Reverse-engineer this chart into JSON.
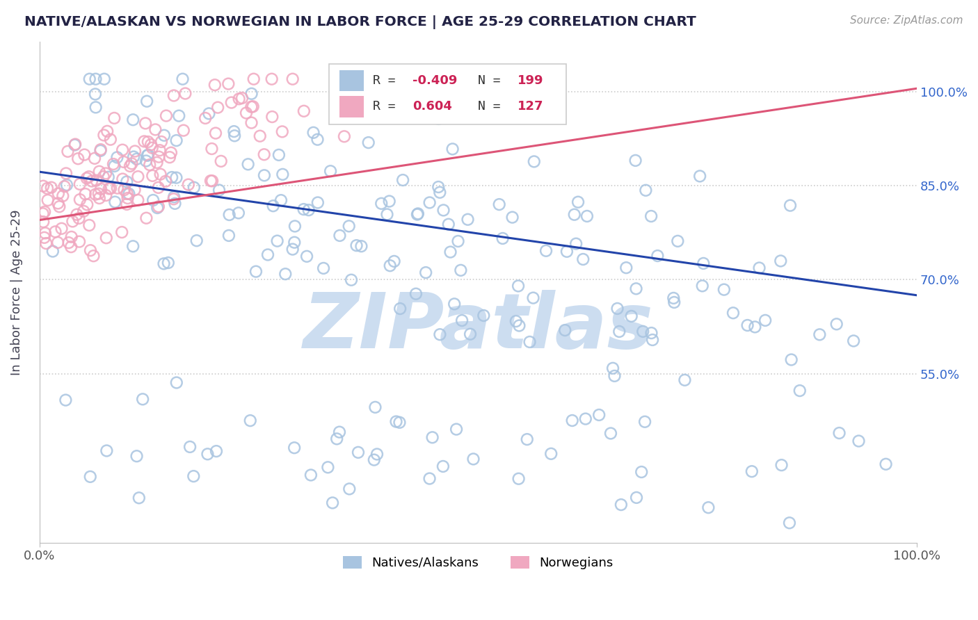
{
  "title": "NATIVE/ALASKAN VS NORWEGIAN IN LABOR FORCE | AGE 25-29 CORRELATION CHART",
  "source_text": "Source: ZipAtlas.com",
  "ylabel": "In Labor Force | Age 25-29",
  "xlim": [
    0.0,
    1.0
  ],
  "ylim": [
    0.28,
    1.08
  ],
  "ytick_labels": [
    "55.0%",
    "70.0%",
    "85.0%",
    "100.0%"
  ],
  "ytick_values": [
    0.55,
    0.7,
    0.85,
    1.0
  ],
  "xtick_labels": [
    "0.0%",
    "100.0%"
  ],
  "xtick_values": [
    0.0,
    1.0
  ],
  "scatter_blue_N": 199,
  "scatter_pink_N": 127,
  "blue_color": "#a8c4e0",
  "pink_color": "#f0a8c0",
  "blue_line_color": "#2244aa",
  "pink_line_color": "#dd5577",
  "title_color": "#222244",
  "source_color": "#999999",
  "grid_color": "#cccccc",
  "watermark_text": "ZIPatlas",
  "watermark_color": "#ccddf0",
  "background_color": "#ffffff",
  "legend_label_natives": "Natives/Alaskans",
  "legend_label_norwegians": "Norwegians",
  "blue_trend_y_start": 0.872,
  "blue_trend_y_end": 0.675,
  "pink_trend_y_start": 0.795,
  "pink_trend_y_end": 1.005
}
